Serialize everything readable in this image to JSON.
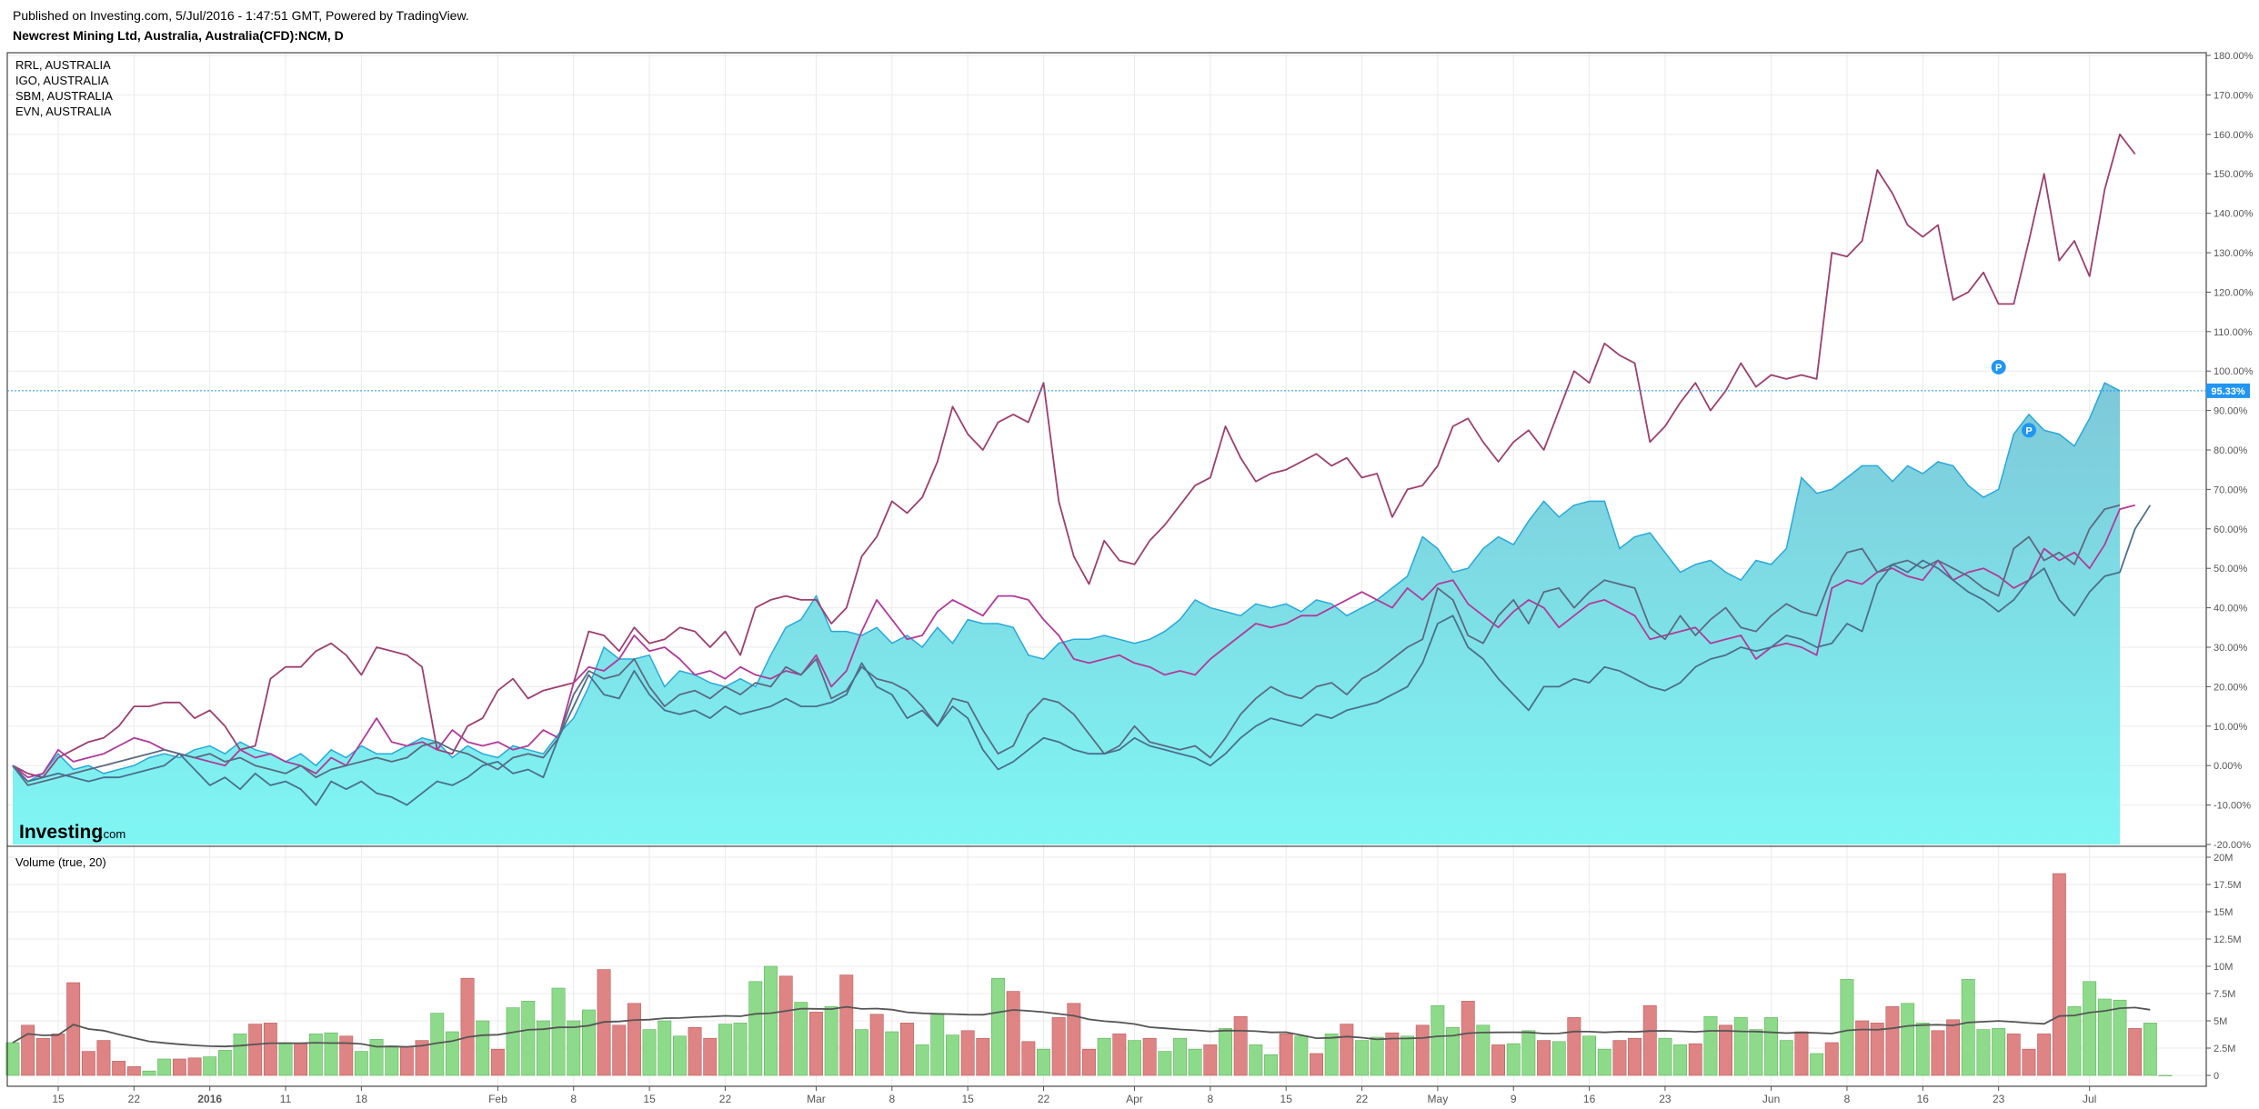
{
  "header": {
    "published": "Published on Investing.com, 5/Jul/2016 - 1:47:51 GMT, Powered by TradingView.",
    "title": "Newcrest Mining Ltd, Australia, Australia(CFD):NCM, D"
  },
  "legend": [
    "RRL, AUSTRALIA",
    "IGO, AUSTRALIA",
    "SBM, AUSTRALIA",
    "EVN, AUSTRALIA"
  ],
  "logo": {
    "main": "Investing",
    "suffix": ".com"
  },
  "volume_label": "Volume (true, 20)",
  "last_value_badge": "95.33%",
  "marker_label": "P",
  "colors": {
    "area_top": "#29a8d9",
    "area_fill_bottom": "#7ff6f4",
    "area_fill_top": "#7ec8d9",
    "series_purple": "#9c3f6e",
    "series_magenta": "#b03a9a",
    "series_grey": "#5c6a80",
    "series_slate": "#4a6f8e",
    "vol_up": "#8ddb8a",
    "vol_down": "#de8484",
    "vol_ma": "#555555",
    "price_line": "#2196f3"
  },
  "chart_data": [
    {
      "type": "area",
      "title": "Newcrest Mining Ltd, Australia, Australia(CFD):NCM, D",
      "y_unit": "%",
      "ylim": [
        -20,
        180
      ],
      "yticks": [
        "180.00%",
        "170.00%",
        "160.00%",
        "150.00%",
        "140.00%",
        "130.00%",
        "120.00%",
        "110.00%",
        "100.00%",
        "90.00%",
        "80.00%",
        "70.00%",
        "60.00%",
        "50.00%",
        "40.00%",
        "30.00%",
        "20.00%",
        "10.00%",
        "0.00%",
        "-10.00%",
        "-20.00%"
      ],
      "x_ticks": [
        {
          "label": "15",
          "i": 3
        },
        {
          "label": "22",
          "i": 8
        },
        {
          "label": "2016",
          "i": 13
        },
        {
          "label": "11",
          "i": 18
        },
        {
          "label": "18",
          "i": 23
        },
        {
          "label": "Feb",
          "i": 32
        },
        {
          "label": "8",
          "i": 37
        },
        {
          "label": "15",
          "i": 42
        },
        {
          "label": "22",
          "i": 47
        },
        {
          "label": "Mar",
          "i": 53
        },
        {
          "label": "8",
          "i": 58
        },
        {
          "label": "15",
          "i": 63
        },
        {
          "label": "22",
          "i": 68
        },
        {
          "label": "Apr",
          "i": 74
        },
        {
          "label": "8",
          "i": 79
        },
        {
          "label": "15",
          "i": 84
        },
        {
          "label": "22",
          "i": 89
        },
        {
          "label": "May",
          "i": 94
        },
        {
          "label": "9",
          "i": 99
        },
        {
          "label": "16",
          "i": 104
        },
        {
          "label": "23",
          "i": 109
        },
        {
          "label": "Jun",
          "i": 116
        },
        {
          "label": "8",
          "i": 121
        },
        {
          "label": "16",
          "i": 126
        },
        {
          "label": "23",
          "i": 131
        },
        {
          "label": "Jul",
          "i": 137
        }
      ],
      "legend": [
        "RRL, AUSTRALIA",
        "IGO, AUSTRALIA",
        "SBM, AUSTRALIA",
        "EVN, AUSTRALIA"
      ],
      "grid": true,
      "series": [
        {
          "values": [
            0,
            -4,
            -2,
            3,
            -1,
            0,
            -2,
            -1,
            0,
            2,
            3,
            2,
            4,
            5,
            3,
            6,
            4,
            3,
            1,
            3,
            0,
            4,
            2,
            5,
            3,
            3,
            5,
            7,
            6,
            2,
            5,
            3,
            2,
            5,
            4,
            3,
            8,
            12,
            20,
            30,
            27,
            27,
            28,
            20,
            24,
            23,
            21,
            20,
            22,
            20,
            28,
            35,
            37,
            43,
            34,
            34,
            33,
            35,
            31,
            33,
            30,
            35,
            31,
            37,
            36,
            36,
            35,
            28,
            27,
            31,
            32,
            32,
            33,
            32,
            31,
            32,
            34,
            37,
            42,
            40,
            39,
            38,
            41,
            40,
            41,
            39,
            42,
            41,
            38,
            40,
            42,
            45,
            48,
            58,
            55,
            49,
            50,
            55,
            58,
            56,
            62,
            67,
            63,
            66,
            67,
            67,
            55,
            58,
            59,
            54,
            49,
            51,
            52,
            49,
            47,
            52,
            51,
            55,
            73,
            69,
            70,
            73,
            76,
            76,
            72,
            76,
            74,
            77,
            76,
            71,
            68,
            70,
            84,
            89,
            85,
            84,
            81,
            88,
            97,
            95
          ]
        },
        {
          "values": [
            0,
            -2,
            -3,
            2,
            4,
            6,
            7,
            10,
            15,
            15,
            16,
            16,
            12,
            14,
            10,
            4,
            5,
            22,
            25,
            25,
            29,
            31,
            28,
            23,
            30,
            29,
            28,
            25,
            4,
            3,
            10,
            12,
            19,
            22,
            17,
            19,
            20,
            21,
            34,
            33,
            29,
            35,
            31,
            32,
            35,
            34,
            30,
            34,
            28,
            40,
            42,
            43,
            42,
            42,
            36,
            40,
            53,
            58,
            67,
            64,
            68,
            77,
            91,
            84,
            80,
            87,
            89,
            87,
            97,
            67,
            53,
            46,
            57,
            52,
            51,
            57,
            61,
            66,
            71,
            73,
            86,
            78,
            72,
            74,
            75,
            77,
            79,
            76,
            78,
            73,
            74,
            63,
            70,
            71,
            76,
            86,
            88,
            82,
            77,
            82,
            85,
            80,
            90,
            100,
            97,
            107,
            104,
            102,
            82,
            86,
            92,
            97,
            90,
            95,
            102,
            96,
            99,
            98,
            99,
            98,
            130,
            129,
            133,
            151,
            145,
            137,
            134,
            137,
            118,
            120,
            125,
            117,
            117,
            133,
            150,
            128,
            133,
            124,
            146,
            160,
            155
          ]
        },
        {
          "values": [
            0,
            -3,
            -2,
            4,
            1,
            2,
            3,
            5,
            7,
            6,
            4,
            3,
            2,
            1,
            0,
            4,
            2,
            3,
            1,
            0,
            -2,
            2,
            0,
            6,
            12,
            6,
            5,
            6,
            4,
            9,
            6,
            5,
            6,
            4,
            5,
            9,
            7,
            21,
            25,
            24,
            27,
            33,
            29,
            30,
            27,
            23,
            24,
            22,
            25,
            23,
            22,
            24,
            23,
            28,
            20,
            24,
            34,
            42,
            37,
            32,
            33,
            39,
            42,
            40,
            38,
            43,
            43,
            42,
            37,
            33,
            27,
            26,
            27,
            28,
            26,
            25,
            23,
            24,
            23,
            27,
            30,
            33,
            36,
            35,
            36,
            38,
            38,
            40,
            42,
            44,
            42,
            40,
            45,
            42,
            46,
            47,
            41,
            38,
            35,
            39,
            42,
            40,
            35,
            38,
            41,
            42,
            40,
            38,
            32,
            33,
            34,
            35,
            31,
            32,
            33,
            27,
            30,
            31,
            30,
            28,
            45,
            47,
            46,
            49,
            50,
            48,
            47,
            52,
            47,
            49,
            50,
            48,
            45,
            47,
            55,
            52,
            54,
            50,
            56,
            65,
            66
          ]
        },
        {
          "values": [
            0,
            -5,
            -4,
            -3,
            -2,
            -1,
            0,
            1,
            2,
            3,
            4,
            3,
            2,
            3,
            1,
            2,
            0,
            -1,
            -2,
            0,
            -3,
            -1,
            0,
            1,
            2,
            1,
            2,
            5,
            6,
            4,
            3,
            1,
            -1,
            2,
            3,
            2,
            7,
            18,
            24,
            22,
            23,
            27,
            20,
            15,
            18,
            19,
            17,
            20,
            18,
            21,
            20,
            25,
            23,
            27,
            17,
            19,
            25,
            22,
            21,
            19,
            15,
            10,
            17,
            16,
            9,
            3,
            5,
            13,
            17,
            16,
            13,
            8,
            3,
            5,
            10,
            6,
            5,
            4,
            5,
            2,
            7,
            13,
            17,
            20,
            18,
            17,
            20,
            21,
            18,
            22,
            24,
            27,
            30,
            32,
            45,
            42,
            33,
            31,
            38,
            42,
            36,
            44,
            45,
            40,
            44,
            47,
            46,
            45,
            35,
            32,
            38,
            33,
            37,
            40,
            35,
            34,
            38,
            41,
            39,
            38,
            48,
            54,
            55,
            49,
            51,
            52,
            50,
            52,
            50,
            48,
            45,
            43,
            55,
            58,
            52,
            54,
            51,
            60,
            65,
            66
          ]
        },
        {
          "values": [
            0,
            -4,
            -3,
            -2,
            -3,
            -4,
            -3,
            -3,
            -2,
            -1,
            0,
            3,
            -1,
            -5,
            -3,
            -6,
            -2,
            -5,
            -4,
            -6,
            -10,
            -4,
            -6,
            -4,
            -7,
            -8,
            -10,
            -7,
            -4,
            -5,
            -3,
            0,
            1,
            -2,
            -1,
            -3,
            7,
            15,
            23,
            18,
            17,
            24,
            18,
            14,
            13,
            14,
            12,
            15,
            13,
            14,
            15,
            17,
            15,
            15,
            16,
            18,
            26,
            20,
            18,
            12,
            14,
            10,
            15,
            12,
            4,
            -1,
            1,
            4,
            7,
            6,
            4,
            3,
            3,
            4,
            7,
            5,
            4,
            3,
            2,
            0,
            3,
            7,
            10,
            12,
            11,
            10,
            13,
            12,
            14,
            15,
            16,
            18,
            20,
            26,
            36,
            38,
            30,
            27,
            22,
            18,
            14,
            20,
            20,
            22,
            21,
            25,
            24,
            22,
            20,
            19,
            21,
            25,
            27,
            28,
            30,
            29,
            30,
            33,
            32,
            30,
            31,
            36,
            34,
            46,
            51,
            49,
            52,
            50,
            47,
            44,
            42,
            39,
            42,
            47,
            50,
            42,
            38,
            44,
            48,
            49,
            60,
            66
          ]
        }
      ]
    },
    {
      "type": "bar",
      "title": "Volume (true, 20)",
      "ylim": [
        0,
        20000000
      ],
      "yticks": [
        "0",
        "2.5M",
        "5M",
        "7.5M",
        "10M",
        "12.5M",
        "15M",
        "17.5M",
        "20M"
      ],
      "values_millions": [
        3.0,
        4.6,
        3.4,
        3.8,
        8.5,
        2.2,
        3.2,
        1.3,
        0.8,
        0.4,
        1.5,
        1.5,
        1.6,
        1.7,
        2.3,
        3.8,
        4.7,
        4.8,
        3.0,
        2.9,
        3.8,
        3.9,
        3.6,
        2.2,
        3.3,
        2.7,
        2.6,
        3.2,
        5.7,
        4.0,
        8.9,
        5.0,
        2.4,
        6.2,
        6.8,
        5.0,
        8.0,
        5.0,
        6.0,
        9.7,
        4.6,
        6.6,
        4.2,
        5.0,
        3.6,
        4.4,
        3.4,
        4.7,
        4.8,
        8.6,
        10.0,
        9.1,
        6.7,
        5.8,
        6.3,
        9.2,
        4.2,
        5.6,
        4.0,
        4.8,
        2.8,
        5.6,
        3.7,
        4.1,
        3.4,
        8.9,
        7.7,
        3.1,
        2.4,
        5.3,
        6.6,
        2.4,
        3.4,
        3.8,
        3.2,
        3.4,
        2.2,
        3.4,
        2.4,
        2.8,
        4.3,
        5.4,
        2.8,
        1.9,
        3.8,
        3.6,
        2.0,
        3.8,
        4.7,
        3.2,
        3.5,
        3.9,
        3.6,
        4.6,
        6.4,
        4.4,
        6.8,
        4.6,
        2.8,
        2.9,
        4.1,
        3.2,
        3.1,
        5.3,
        3.6,
        2.4,
        3.2,
        3.4,
        6.4,
        3.4,
        2.8,
        2.9,
        5.4,
        4.6,
        5.3,
        4.2,
        5.3,
        3.2,
        4.0,
        2.0,
        3.0,
        8.8,
        5.0,
        4.8,
        6.3,
        6.6,
        4.8,
        4.1,
        5.1,
        8.8,
        4.2,
        4.3,
        3.8,
        2.4,
        3.8,
        18.5,
        6.3,
        8.6,
        7.0,
        6.9,
        4.3,
        4.8,
        0.0
      ],
      "down_bars": [
        1,
        2,
        3,
        4,
        5,
        6,
        7,
        8,
        11,
        12,
        16,
        17,
        19,
        22,
        26,
        27,
        30,
        32,
        39,
        40,
        41,
        45,
        46,
        51,
        53,
        55,
        57,
        59,
        63,
        64,
        66,
        67,
        69,
        70,
        71,
        73,
        75,
        79,
        81,
        84,
        86,
        88,
        91,
        93,
        96,
        98,
        101,
        103,
        106,
        107,
        108,
        111,
        113,
        118,
        120,
        122,
        123,
        124,
        127,
        128,
        132,
        133,
        134,
        135,
        140
      ]
    }
  ]
}
